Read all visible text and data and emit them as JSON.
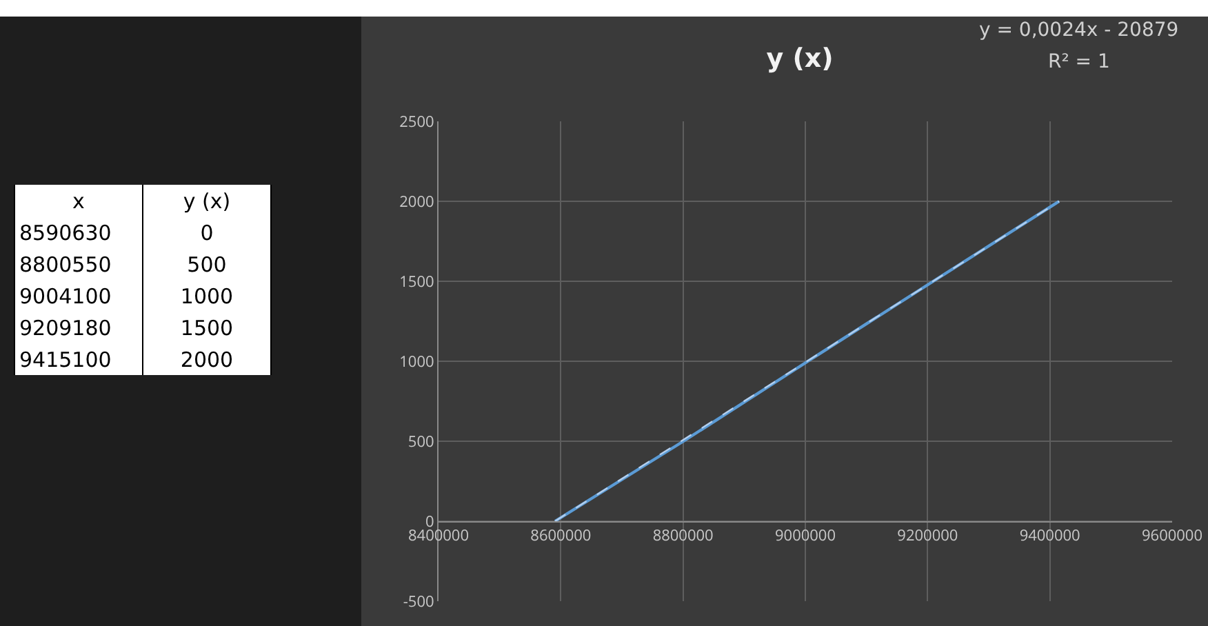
{
  "chart_data": {
    "type": "line",
    "title": "y (x)",
    "annotations": [
      "y = 0,0024x - 20879",
      "R² = 1",
      "x",
      "y (x)",
      "8590630",
      "0",
      "8800550",
      "500",
      "9004100",
      "1000",
      "9209180",
      "1500",
      "9415100",
      "2000"
    ],
    "x": [
      8590630,
      8800550,
      9004100,
      9209180,
      9415100
    ],
    "series": [
      {
        "color": "#5b9bd5",
        "values": [
          0,
          500,
          1000,
          1500,
          2000
        ]
      },
      {
        "type": "line",
        "color": "#b4cfee",
        "line_style": "dashed",
        "x": [
          8590630,
          9415100
        ],
        "values": [
          0,
          2000
        ]
      }
    ],
    "xlim": [
      8400000,
      9600000
    ],
    "xticks": [
      8400000,
      8600000,
      8800000,
      9000000,
      9200000,
      9400000,
      9600000
    ],
    "ylim": [
      -500,
      2500
    ],
    "yticks": [
      -500,
      0,
      500,
      1000,
      1500,
      2000,
      2500
    ],
    "grid": true,
    "marker": "none",
    "line_style": "solid"
  }
}
